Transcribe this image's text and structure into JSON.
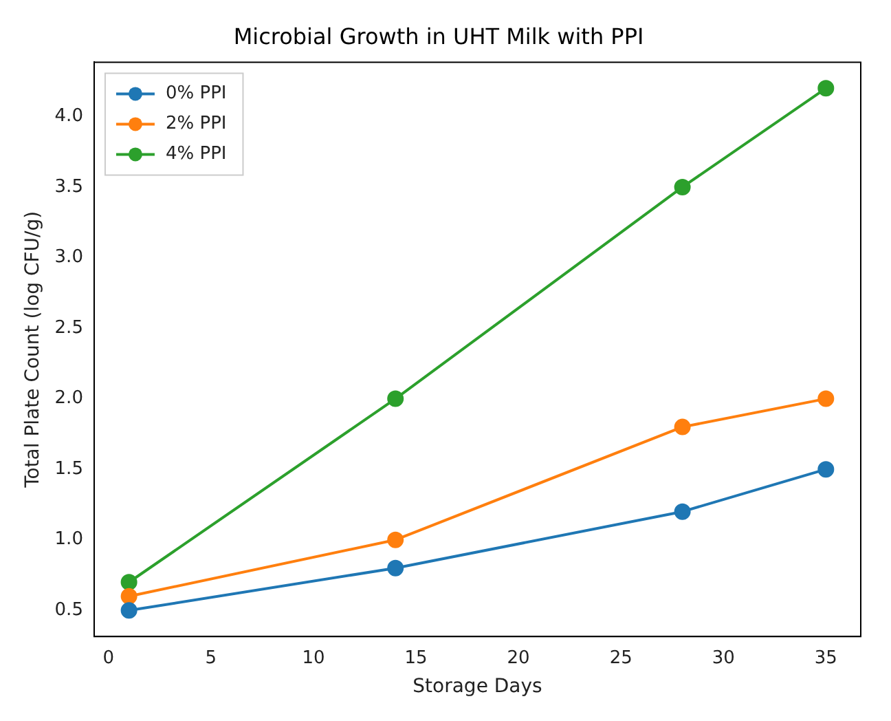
{
  "chart_data": {
    "type": "line",
    "title": "Microbial Growth in UHT Milk with PPI",
    "xlabel": "Storage Days",
    "ylabel": "Total Plate Count (log CFU/g)",
    "x": [
      1,
      14,
      28,
      35
    ],
    "series": [
      {
        "name": "0% PPI",
        "color": "#1f77b4",
        "values": [
          0.5,
          0.8,
          1.2,
          1.5
        ]
      },
      {
        "name": "2% PPI",
        "color": "#ff7f0e",
        "values": [
          0.6,
          1.0,
          1.8,
          2.0
        ]
      },
      {
        "name": "4% PPI",
        "color": "#2ca02c",
        "values": [
          0.7,
          2.0,
          3.5,
          4.2
        ]
      }
    ],
    "xlim": [
      -0.7,
      36.7
    ],
    "xticks": [
      0,
      5,
      10,
      15,
      20,
      25,
      30,
      35
    ],
    "ylim": [
      0.315,
      4.385
    ],
    "yticks": [
      0.5,
      {
        "value": 1,
        "label": "1.0"
      },
      1.5,
      {
        "value": 2,
        "label": "2.0"
      },
      2.5,
      {
        "value": 3,
        "label": "3.0"
      },
      3.5,
      {
        "value": 4,
        "label": "4.0"
      }
    ],
    "grid": false,
    "legend": "top left",
    "marker": "circle",
    "line_style": "solid"
  }
}
